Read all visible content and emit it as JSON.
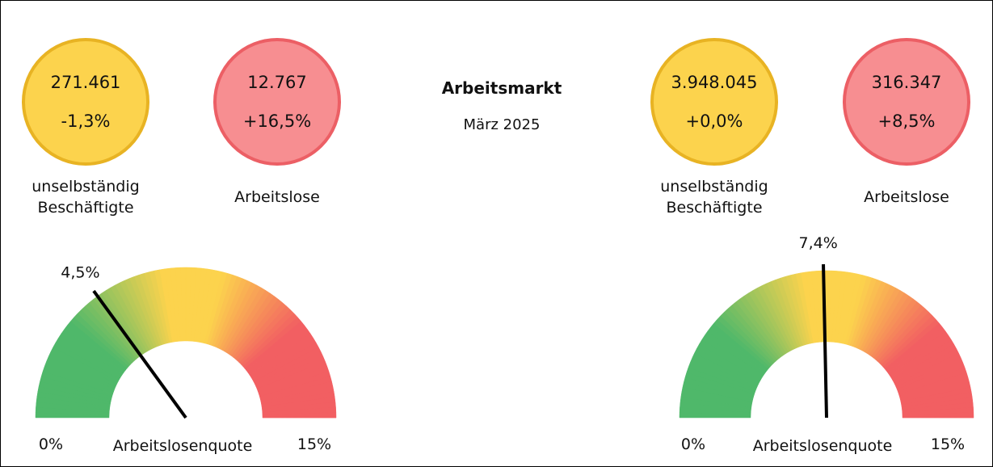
{
  "title": "Arbeitsmarkt",
  "subtitle": "März 2025",
  "panels": [
    {
      "kpis": [
        {
          "value": "271.461",
          "change": "-1,3%",
          "label": "unselbständig Beschäftigte",
          "kind": "yellow"
        },
        {
          "value": "12.767",
          "change": "+16,5%",
          "label": "Arbeitslose",
          "kind": "red"
        }
      ],
      "gauge": {
        "value": 4.5,
        "value_label": "4,5%",
        "label": "Arbeitslosenquote",
        "lim": [
          0,
          15
        ],
        "ticks": [
          {
            "value": 0,
            "label": "0%"
          },
          {
            "value": 15,
            "label": "15%"
          }
        ]
      }
    },
    {
      "kpis": [
        {
          "value": "3.948.045",
          "change": "+0,0%",
          "label": "unselbständig Beschäftigte",
          "kind": "yellow"
        },
        {
          "value": "316.347",
          "change": "+8,5%",
          "label": "Arbeitslose",
          "kind": "red"
        }
      ],
      "gauge": {
        "value": 7.4,
        "value_label": "7,4%",
        "label": "Arbeitslosenquote",
        "lim": [
          0,
          15
        ],
        "ticks": [
          {
            "value": 0,
            "label": "0%"
          },
          {
            "value": 15,
            "label": "15%"
          }
        ]
      }
    }
  ]
}
